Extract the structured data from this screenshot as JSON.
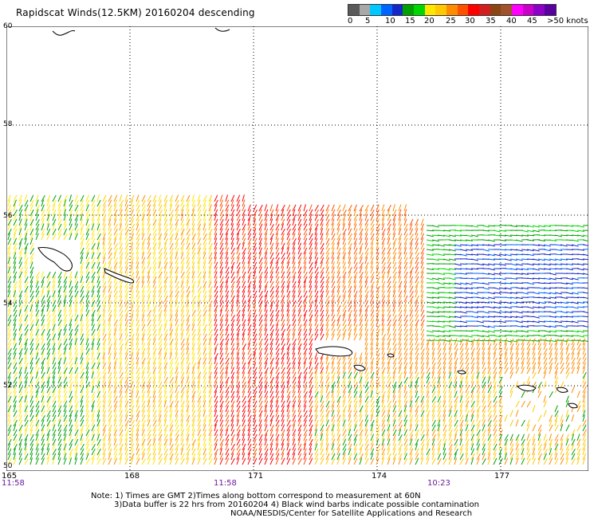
{
  "title": "Rapidscat Winds(12.5KM) 20160204 descending",
  "legend": {
    "colors": [
      "#5a5a5a",
      "#a8a8a8",
      "#00c8ff",
      "#0064ff",
      "#1428c8",
      "#00a000",
      "#00d700",
      "#ffe600",
      "#ffc800",
      "#ff8c00",
      "#ff5000",
      "#ff0000",
      "#d21e1e",
      "#8b4513",
      "#a0522d",
      "#ff00ff",
      "#c800c8",
      "#8c00c8",
      "#5a00a0"
    ],
    "labels": [
      "0",
      "5",
      "10",
      "15",
      "20",
      "25",
      "30",
      "35",
      "40",
      "45",
      ">50 knots"
    ]
  },
  "latitudes": [
    "60",
    "58",
    "56",
    "54",
    "52",
    "50"
  ],
  "longitudes": [
    "165",
    "168",
    "171",
    "174",
    "177"
  ],
  "times": [
    "11:58",
    "11:58",
    "10:23"
  ],
  "notes": {
    "line1": "Note: 1) Times are GMT 2)Times along bottom correspond to measurement at 60N",
    "line2": "3)Data buffer is 22 hrs from 20160204 4) Black wind barbs indicate possible contamination",
    "credit": "NOAA/NESDIS/Center for Satellite Applications and Research"
  }
}
